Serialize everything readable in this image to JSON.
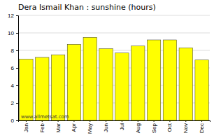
{
  "chart_data": {
    "type": "bar",
    "title": "Dera Ismail Khan : sunshine (hours)",
    "categories": [
      "Jan",
      "Feb",
      "Mar",
      "Apr",
      "May",
      "Jun",
      "Jul",
      "Aug",
      "Sep",
      "Oct",
      "Nov",
      "Dec"
    ],
    "values": [
      7.0,
      7.2,
      7.5,
      8.7,
      9.5,
      8.2,
      7.7,
      8.5,
      9.2,
      9.2,
      8.3,
      6.9
    ],
    "color": "#FFFF00",
    "ylim": [
      0,
      12
    ],
    "yticks": [
      0,
      2,
      4,
      6,
      8,
      10,
      12
    ],
    "grid": true,
    "annotations": [
      "www.allmetsat.com"
    ]
  }
}
